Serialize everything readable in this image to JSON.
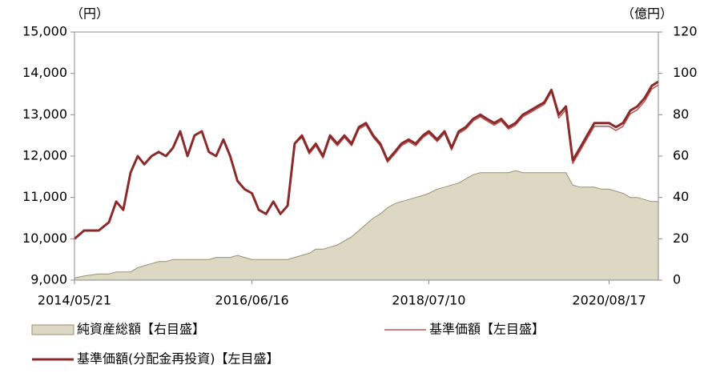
{
  "chart_data": {
    "type": "line",
    "y_label": "（円）",
    "y2_label": "（億円）",
    "x": [
      "2014/05/21",
      "2014/07/01",
      "2014/09/01",
      "2014/10/15",
      "2014/11/15",
      "2014/12/15",
      "2015/01/15",
      "2015/02/15",
      "2015/03/15",
      "2015/04/15",
      "2015/05/15",
      "2015/06/15",
      "2015/07/15",
      "2015/08/15",
      "2015/09/15",
      "2015/10/15",
      "2015/11/15",
      "2015/12/15",
      "2016/01/15",
      "2016/02/15",
      "2016/03/15",
      "2016/04/15",
      "2016/05/15",
      "2016/06/16",
      "2016/07/15",
      "2016/08/15",
      "2016/09/15",
      "2016/10/15",
      "2016/11/15",
      "2016/12/15",
      "2017/01/15",
      "2017/02/15",
      "2017/03/15",
      "2017/04/15",
      "2017/05/15",
      "2017/06/15",
      "2017/07/15",
      "2017/08/15",
      "2017/09/15",
      "2017/10/15",
      "2017/11/15",
      "2017/12/15",
      "2018/01/15",
      "2018/02/15",
      "2018/03/15",
      "2018/04/15",
      "2018/05/15",
      "2018/06/15",
      "2018/07/10",
      "2018/08/15",
      "2018/09/15",
      "2018/10/15",
      "2018/11/15",
      "2018/12/15",
      "2019/01/15",
      "2019/02/15",
      "2019/03/15",
      "2019/04/15",
      "2019/05/15",
      "2019/06/15",
      "2019/07/15",
      "2019/08/15",
      "2019/09/15",
      "2019/10/15",
      "2019/11/15",
      "2019/12/15",
      "2020/01/15",
      "2020/02/15",
      "2020/03/15",
      "2020/04/15",
      "2020/05/15",
      "2020/06/15",
      "2020/07/15",
      "2020/08/17",
      "2020/09/15",
      "2020/10/15",
      "2020/11/15",
      "2020/12/15",
      "2021/01/15",
      "2021/02/15",
      "2021/03/15"
    ],
    "xlim": [
      "2014/05/21",
      "2021/03/15"
    ],
    "xticks": [
      "2014/05/21",
      "2016/06/16",
      "2018/07/10",
      "2020/08/17"
    ],
    "ylim": [
      9000,
      15000
    ],
    "yticks": [
      {
        "value": 9000,
        "label": "9,000"
      },
      {
        "value": 10000,
        "label": "10,000"
      },
      {
        "value": 11000,
        "label": "11,000"
      },
      {
        "value": 12000,
        "label": "12,000"
      },
      {
        "value": 13000,
        "label": "13,000"
      },
      {
        "value": 14000,
        "label": "14,000"
      },
      {
        "value": 15000,
        "label": "15,000"
      }
    ],
    "y2lim": [
      0,
      120
    ],
    "y2ticks": [
      0,
      20,
      40,
      60,
      80,
      100,
      120
    ],
    "series": [
      {
        "name": "純資産総額【右目盛】",
        "type": "area",
        "axis": "y2",
        "color": "#ddd8c4",
        "values": [
          1,
          2,
          3,
          3,
          4,
          4,
          4,
          6,
          7,
          8,
          9,
          9,
          10,
          10,
          10,
          10,
          10,
          10,
          11,
          11,
          11,
          12,
          11,
          10,
          10,
          10,
          10,
          10,
          10,
          11,
          12,
          13,
          15,
          15,
          16,
          17,
          19,
          21,
          24,
          27,
          30,
          32,
          35,
          37,
          38,
          39,
          40,
          41,
          42,
          44,
          45,
          46,
          47,
          49,
          51,
          52,
          52,
          52,
          52,
          52,
          53,
          52,
          52,
          52,
          52,
          52,
          52,
          52,
          46,
          45,
          45,
          45,
          44,
          44,
          43,
          42,
          40,
          40,
          39,
          38,
          38
        ]
      },
      {
        "name": "基準価額【左目盛】",
        "type": "line",
        "color": "#c0504d",
        "values": [
          10000,
          10200,
          10200,
          10400,
          10900,
          10700,
          11600,
          12000,
          11800,
          12000,
          12100,
          12000,
          12200,
          12600,
          12000,
          12500,
          12600,
          12100,
          12000,
          12400,
          12000,
          11400,
          11200,
          11100,
          10700,
          10600,
          10900,
          10600,
          10800,
          12300,
          12450,
          12050,
          12250,
          11950,
          12450,
          12250,
          12450,
          12250,
          12650,
          12750,
          12450,
          12250,
          11850,
          12050,
          12250,
          12350,
          12250,
          12450,
          12550,
          12350,
          12550,
          12150,
          12550,
          12650,
          12850,
          12950,
          12850,
          12750,
          12850,
          12650,
          12750,
          12950,
          13050,
          13150,
          13250,
          13550,
          12920,
          13120,
          11820,
          12120,
          12420,
          12720,
          12720,
          12720,
          12620,
          12720,
          13020,
          13120,
          13320,
          13620,
          13720
        ]
      },
      {
        "name": "基準価額(分配金再投資)【左目盛】",
        "type": "line",
        "color": "#8b2a2a",
        "values": [
          10000,
          10200,
          10200,
          10400,
          10900,
          10700,
          11600,
          12000,
          11800,
          12000,
          12100,
          12000,
          12200,
          12600,
          12000,
          12500,
          12600,
          12100,
          12000,
          12400,
          12000,
          11400,
          11200,
          11100,
          10700,
          10600,
          10900,
          10600,
          10800,
          12300,
          12500,
          12100,
          12300,
          12000,
          12500,
          12300,
          12500,
          12300,
          12700,
          12800,
          12500,
          12300,
          11900,
          12100,
          12300,
          12400,
          12300,
          12500,
          12600,
          12400,
          12600,
          12200,
          12600,
          12700,
          12900,
          13000,
          12900,
          12800,
          12900,
          12700,
          12800,
          13000,
          13100,
          13200,
          13300,
          13600,
          13000,
          13200,
          11900,
          12200,
          12500,
          12800,
          12800,
          12800,
          12700,
          12800,
          13100,
          13200,
          13400,
          13700,
          13800
        ]
      }
    ]
  }
}
